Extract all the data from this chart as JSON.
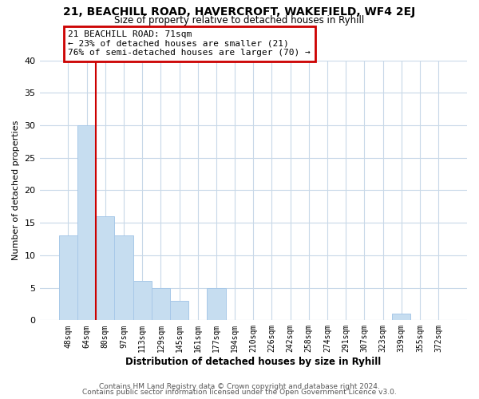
{
  "title1": "21, BEACHILL ROAD, HAVERCROFT, WAKEFIELD, WF4 2EJ",
  "title2": "Size of property relative to detached houses in Ryhill",
  "xlabel": "Distribution of detached houses by size in Ryhill",
  "ylabel": "Number of detached properties",
  "bin_labels": [
    "48sqm",
    "64sqm",
    "80sqm",
    "97sqm",
    "113sqm",
    "129sqm",
    "145sqm",
    "161sqm",
    "177sqm",
    "194sqm",
    "210sqm",
    "226sqm",
    "242sqm",
    "258sqm",
    "274sqm",
    "291sqm",
    "307sqm",
    "323sqm",
    "339sqm",
    "355sqm",
    "372sqm"
  ],
  "bar_heights": [
    13,
    30,
    16,
    13,
    6,
    5,
    3,
    0,
    5,
    0,
    0,
    0,
    0,
    0,
    0,
    0,
    0,
    0,
    1,
    0,
    0
  ],
  "bar_color": "#c6ddf0",
  "bar_edgecolor": "#a8c8e8",
  "vline_x": 1.5,
  "vline_color": "#cc0000",
  "annotation_title": "21 BEACHILL ROAD: 71sqm",
  "annotation_line1": "← 23% of detached houses are smaller (21)",
  "annotation_line2": "76% of semi-detached houses are larger (70) →",
  "annotation_box_color": "#cc0000",
  "ylim": [
    0,
    40
  ],
  "yticks": [
    0,
    5,
    10,
    15,
    20,
    25,
    30,
    35,
    40
  ],
  "footer1": "Contains HM Land Registry data © Crown copyright and database right 2024.",
  "footer2": "Contains public sector information licensed under the Open Government Licence v3.0.",
  "bg_color": "#ffffff",
  "grid_color": "#c8d8e8"
}
